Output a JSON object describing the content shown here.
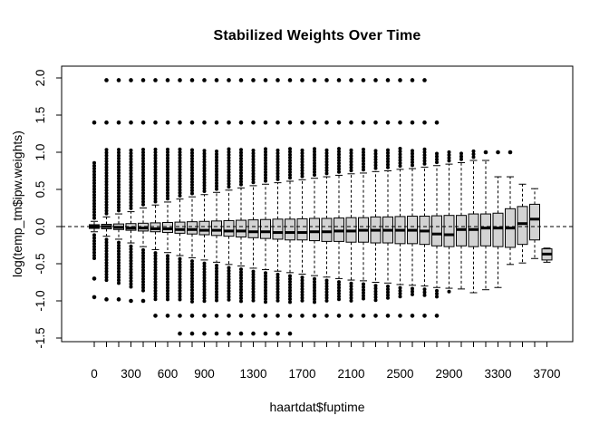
{
  "title": "Stabilized Weights Over Time",
  "chart_data": {
    "type": "boxplot",
    "title": "Stabilized Weights Over Time",
    "xlabel": "haartdat$fuptime",
    "ylabel": "log(temp_tm$ipw.weights)",
    "ylim": [
      -1.55,
      2.16
    ],
    "reference_line": 0.0,
    "reference_line_style": "dashed",
    "grid": false,
    "box_fill": "#d3d3d3",
    "box_stroke": "#000000",
    "yticks": [
      {
        "v": 2.0,
        "label": "2.0"
      },
      {
        "v": 1.5,
        "label": "1.5"
      },
      {
        "v": 1.0,
        "label": "1.0"
      },
      {
        "v": 0.5,
        "label": "0.5"
      },
      {
        "v": 0.0,
        "label": "0.0"
      },
      {
        "v": -0.5,
        "label": "-0.5"
      },
      {
        "v": -1.0,
        "label": "-1.0"
      },
      {
        "v": -1.5,
        "label": "-1.5"
      }
    ],
    "xtick_labels": [
      {
        "index": 0,
        "label": "0"
      },
      {
        "index": 3,
        "label": "300"
      },
      {
        "index": 6,
        "label": "600"
      },
      {
        "index": 9,
        "label": "900"
      },
      {
        "index": 13,
        "label": "1300"
      },
      {
        "index": 17,
        "label": "1700"
      },
      {
        "index": 21,
        "label": "2100"
      },
      {
        "index": 25,
        "label": "2500"
      },
      {
        "index": 29,
        "label": "2900"
      },
      {
        "index": 33,
        "label": "3300"
      },
      {
        "index": 37,
        "label": "3700"
      }
    ],
    "group_columns": [
      "fuptime",
      "whisker_lo",
      "q1",
      "median",
      "q3",
      "whisker_hi",
      "outlier_stripe_above_to",
      "outlier_stripe_below_to",
      "outlier_dots_above",
      "outlier_dots_below"
    ],
    "groups": [
      [
        0,
        -0.07,
        -0.025,
        0.0,
        0.025,
        0.07,
        0.88,
        -0.45,
        [
          1.4
        ],
        [
          -0.7,
          -0.95
        ]
      ],
      [
        100,
        -0.13,
        -0.03,
        0.0,
        0.03,
        0.13,
        1.07,
        -0.75,
        [
          1.4,
          1.97
        ],
        [
          -0.98
        ]
      ],
      [
        200,
        -0.17,
        -0.04,
        -0.01,
        0.035,
        0.17,
        1.05,
        -0.8,
        [
          1.4,
          1.97
        ],
        [
          -0.98
        ]
      ],
      [
        300,
        -0.22,
        -0.05,
        -0.02,
        0.04,
        0.2,
        1.05,
        -0.85,
        [
          1.4,
          1.97
        ],
        [
          -1.0
        ]
      ],
      [
        400,
        -0.27,
        -0.06,
        -0.02,
        0.045,
        0.25,
        1.05,
        -0.9,
        [
          1.4,
          1.97
        ],
        [
          -1.0
        ]
      ],
      [
        500,
        -0.31,
        -0.07,
        -0.03,
        0.05,
        0.29,
        1.05,
        -1.0,
        [
          1.4,
          1.97
        ],
        [
          -1.2
        ]
      ],
      [
        600,
        -0.35,
        -0.08,
        -0.03,
        0.055,
        0.33,
        1.05,
        -1.0,
        [
          1.4,
          1.97
        ],
        [
          -1.2
        ]
      ],
      [
        700,
        -0.39,
        -0.09,
        -0.04,
        0.06,
        0.37,
        1.05,
        -1.0,
        [
          1.4,
          1.97
        ],
        [
          -1.2,
          -1.44
        ]
      ],
      [
        800,
        -0.42,
        -0.1,
        -0.04,
        0.065,
        0.4,
        1.05,
        -1.02,
        [
          1.4,
          1.97
        ],
        [
          -1.2,
          -1.44
        ]
      ],
      [
        900,
        -0.45,
        -0.11,
        -0.05,
        0.07,
        0.43,
        1.05,
        -1.02,
        [
          1.4,
          1.97
        ],
        [
          -1.2,
          -1.44
        ]
      ],
      [
        1000,
        -0.48,
        -0.12,
        -0.05,
        0.075,
        0.46,
        1.05,
        -1.02,
        [
          1.4,
          1.97
        ],
        [
          -1.2,
          -1.44
        ]
      ],
      [
        1100,
        -0.51,
        -0.13,
        -0.06,
        0.08,
        0.49,
        1.05,
        -1.02,
        [
          1.4,
          1.97
        ],
        [
          -1.2,
          -1.44
        ]
      ],
      [
        1200,
        -0.53,
        -0.14,
        -0.06,
        0.085,
        0.52,
        1.05,
        -1.02,
        [
          1.4,
          1.97
        ],
        [
          -1.2,
          -1.44
        ]
      ],
      [
        1300,
        -0.56,
        -0.15,
        -0.07,
        0.09,
        0.55,
        1.05,
        -1.02,
        [
          1.4,
          1.97
        ],
        [
          -1.2,
          -1.44
        ]
      ],
      [
        1400,
        -0.58,
        -0.16,
        -0.07,
        0.095,
        0.57,
        1.05,
        -1.02,
        [
          1.4,
          1.97
        ],
        [
          -1.2,
          -1.44
        ]
      ],
      [
        1500,
        -0.6,
        -0.17,
        -0.08,
        0.1,
        0.59,
        1.05,
        -1.02,
        [
          1.4,
          1.97
        ],
        [
          -1.2,
          -1.44
        ]
      ],
      [
        1600,
        -0.62,
        -0.18,
        -0.08,
        0.1,
        0.61,
        1.05,
        -1.02,
        [
          1.4,
          1.97
        ],
        [
          -1.2,
          -1.44
        ]
      ],
      [
        1700,
        -0.64,
        -0.18,
        -0.08,
        0.105,
        0.63,
        1.05,
        -1.02,
        [
          1.4,
          1.97
        ],
        [
          -1.2
        ]
      ],
      [
        1800,
        -0.66,
        -0.19,
        -0.07,
        0.11,
        0.65,
        1.05,
        -1.02,
        [
          1.4,
          1.97
        ],
        [
          -1.2
        ]
      ],
      [
        1900,
        -0.68,
        -0.2,
        -0.07,
        0.11,
        0.67,
        1.05,
        -1.02,
        [
          1.4,
          1.97
        ],
        [
          -1.2
        ]
      ],
      [
        2000,
        -0.7,
        -0.2,
        -0.06,
        0.115,
        0.69,
        1.05,
        -1.0,
        [
          1.4,
          1.97
        ],
        [
          -1.2
        ]
      ],
      [
        2100,
        -0.72,
        -0.21,
        -0.06,
        0.12,
        0.71,
        1.05,
        -1.0,
        [
          1.4,
          1.97
        ],
        [
          -1.2
        ]
      ],
      [
        2200,
        -0.73,
        -0.21,
        -0.05,
        0.12,
        0.72,
        1.05,
        -1.0,
        [
          1.4,
          1.97
        ],
        [
          -1.2
        ]
      ],
      [
        2300,
        -0.75,
        -0.22,
        -0.05,
        0.13,
        0.74,
        1.05,
        -1.0,
        [
          1.4,
          1.97
        ],
        [
          -1.2
        ]
      ],
      [
        2400,
        -0.76,
        -0.22,
        -0.05,
        0.13,
        0.75,
        1.05,
        -1.0,
        [
          1.4,
          1.97
        ],
        [
          -1.2
        ]
      ],
      [
        2500,
        -0.78,
        -0.23,
        -0.05,
        0.135,
        0.77,
        1.05,
        -0.95,
        [
          1.4,
          1.97
        ],
        [
          -1.2
        ]
      ],
      [
        2600,
        -0.79,
        -0.23,
        -0.05,
        0.14,
        0.78,
        1.05,
        -0.95,
        [
          1.4,
          1.97
        ],
        [
          -1.2
        ]
      ],
      [
        2700,
        -0.8,
        -0.24,
        -0.06,
        0.14,
        0.8,
        1.05,
        -0.95,
        [
          1.4,
          1.97
        ],
        [
          -1.2
        ]
      ],
      [
        2800,
        -0.82,
        -0.26,
        -0.1,
        0.145,
        0.82,
        1.02,
        -0.95,
        [
          1.4
        ],
        [
          -1.2
        ]
      ],
      [
        2900,
        -0.83,
        -0.27,
        -0.11,
        0.15,
        0.84,
        1.02,
        -0.9,
        [],
        []
      ],
      [
        3000,
        -0.84,
        -0.26,
        -0.04,
        0.15,
        0.86,
        1.02,
        -0.85,
        [],
        []
      ],
      [
        3100,
        -0.89,
        -0.27,
        -0.04,
        0.17,
        0.89,
        1.02,
        null,
        [],
        []
      ],
      [
        3200,
        -0.85,
        -0.26,
        -0.02,
        0.17,
        0.89,
        null,
        null,
        [
          1.0
        ],
        []
      ],
      [
        3300,
        -0.82,
        -0.27,
        -0.02,
        0.18,
        0.67,
        null,
        null,
        [
          1.0
        ],
        []
      ],
      [
        3400,
        -0.51,
        -0.28,
        -0.02,
        0.24,
        0.67,
        null,
        null,
        [
          1.0
        ],
        []
      ],
      [
        3500,
        -0.49,
        -0.24,
        0.04,
        0.27,
        0.57,
        null,
        null,
        [],
        []
      ],
      [
        3600,
        -0.43,
        -0.18,
        0.1,
        0.3,
        0.51,
        null,
        null,
        [],
        []
      ],
      [
        3700,
        -0.48,
        -0.45,
        -0.37,
        -0.3,
        -0.29,
        null,
        null,
        [],
        []
      ]
    ]
  }
}
